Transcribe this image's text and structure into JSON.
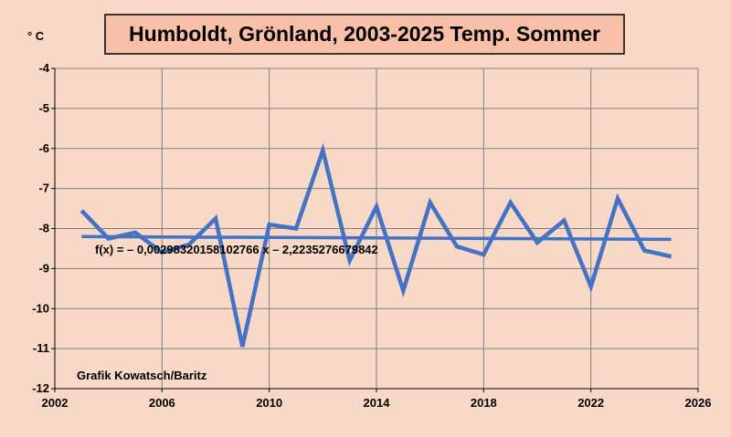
{
  "chart_data": {
    "type": "line",
    "title": "Humboldt, Grönland, 2003-2025 Temp. Sommer",
    "ylabel": "° C",
    "xlabel": "",
    "xlim": [
      2002,
      2026
    ],
    "ylim": [
      -12,
      -4
    ],
    "xticks": [
      2002,
      2006,
      2010,
      2014,
      2018,
      2022,
      2026
    ],
    "yticks": [
      -4,
      -5,
      -6,
      -7,
      -8,
      -9,
      -10,
      -11,
      -12
    ],
    "grid": true,
    "series": [
      {
        "x": [
          2003,
          2004,
          2005,
          2006,
          2007,
          2008,
          2009,
          2010,
          2011,
          2012,
          2013,
          2014,
          2015,
          2016,
          2017,
          2018,
          2019,
          2020,
          2021,
          2022,
          2023,
          2024,
          2025
        ],
        "values": [
          -7.55,
          -8.25,
          -8.1,
          -8.6,
          -8.4,
          -7.75,
          -10.95,
          -7.9,
          -8.0,
          -6.05,
          -8.8,
          -7.45,
          -9.55,
          -7.35,
          -8.45,
          -8.65,
          -7.35,
          -8.35,
          -7.8,
          -9.45,
          -7.25,
          -8.55,
          -8.7
        ],
        "color": "#4472c4"
      }
    ],
    "trendline": {
      "x": [
        2003,
        2025
      ],
      "values": [
        -8.2,
        -8.27
      ],
      "color": "#4472c4",
      "equation": "f(x) = – 0,00298320158102766 x – 2,2235276679842"
    },
    "annotations": [
      {
        "text": "Grafik Kowatsch/Baritz"
      }
    ]
  }
}
